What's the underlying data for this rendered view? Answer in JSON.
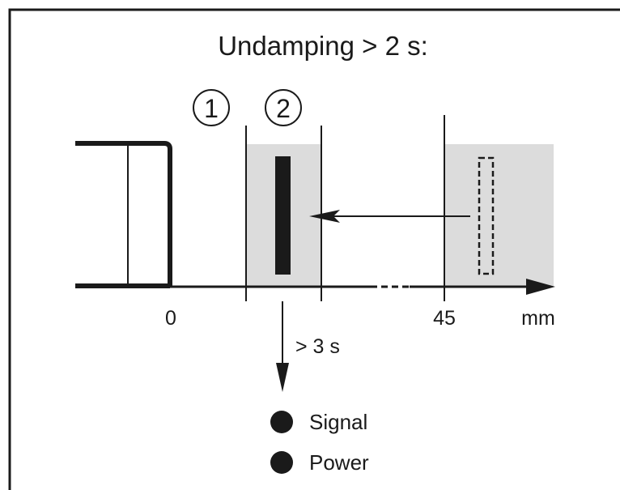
{
  "title": "Undamping > 2 s:",
  "zones": [
    {
      "number": "1"
    },
    {
      "number": "2"
    }
  ],
  "axis": {
    "tick_0": "0",
    "tick_45": "45",
    "unit": "mm"
  },
  "timer_label": "> 3 s",
  "indicators": [
    {
      "label": "Signal",
      "state": "on",
      "color": "#1a1a1a"
    },
    {
      "label": "Power",
      "state": "on",
      "color": "#1a1a1a"
    }
  ],
  "colors": {
    "zone_fill": "#dcdcdc",
    "stroke": "#1a1a1a"
  }
}
